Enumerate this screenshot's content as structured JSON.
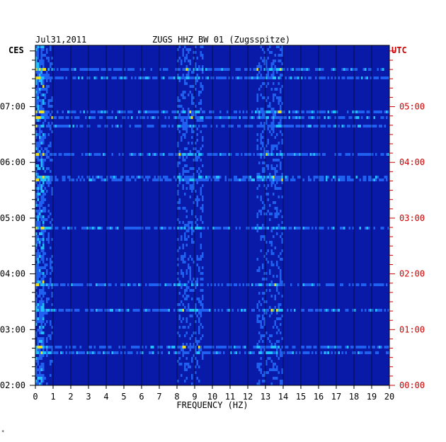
{
  "header": {
    "date": "Jul31,2011",
    "station": "ZUGS HHZ BW 01 (Zugsspitze)"
  },
  "left_axis_label": "CES",
  "right_axis_label": "UTC",
  "footnote": "*",
  "colors": {
    "background": "#ffffff",
    "left_text": "#000000",
    "right_text": "#cc0000",
    "base": "#0a1aa8",
    "mid": "#2060f0",
    "high": "#20c0ff",
    "peak": "#e8e020"
  },
  "chart_data": {
    "type": "heatmap",
    "title": "ZUGS HHZ BW 01 (Zugsspitze)",
    "subtitle": "Jul31,2011",
    "xlabel": "FREQUENCY (HZ)",
    "xlim": [
      0,
      20
    ],
    "x_ticks": [
      0,
      1,
      2,
      3,
      4,
      5,
      6,
      7,
      8,
      9,
      10,
      11,
      12,
      13,
      14,
      15,
      16,
      17,
      18,
      19,
      20
    ],
    "y_left_label": "CES",
    "y_right_label": "UTC",
    "y_left_ticks": [
      "07:00",
      "06:00",
      "05:00",
      "04:00",
      "03:00",
      "02:00"
    ],
    "y_right_ticks": [
      "05:00",
      "04:00",
      "03:00",
      "02:00",
      "01:00",
      "00:00"
    ],
    "ylim_hours_ces": [
      2,
      8.1
    ],
    "energy_bands_hz": [
      [
        0,
        1
      ],
      [
        8,
        9.5
      ],
      [
        12.5,
        14
      ]
    ],
    "grid": true,
    "colormap": [
      "#0a1aa8",
      "#2060f0",
      "#20c0ff",
      "#e8e020"
    ]
  }
}
